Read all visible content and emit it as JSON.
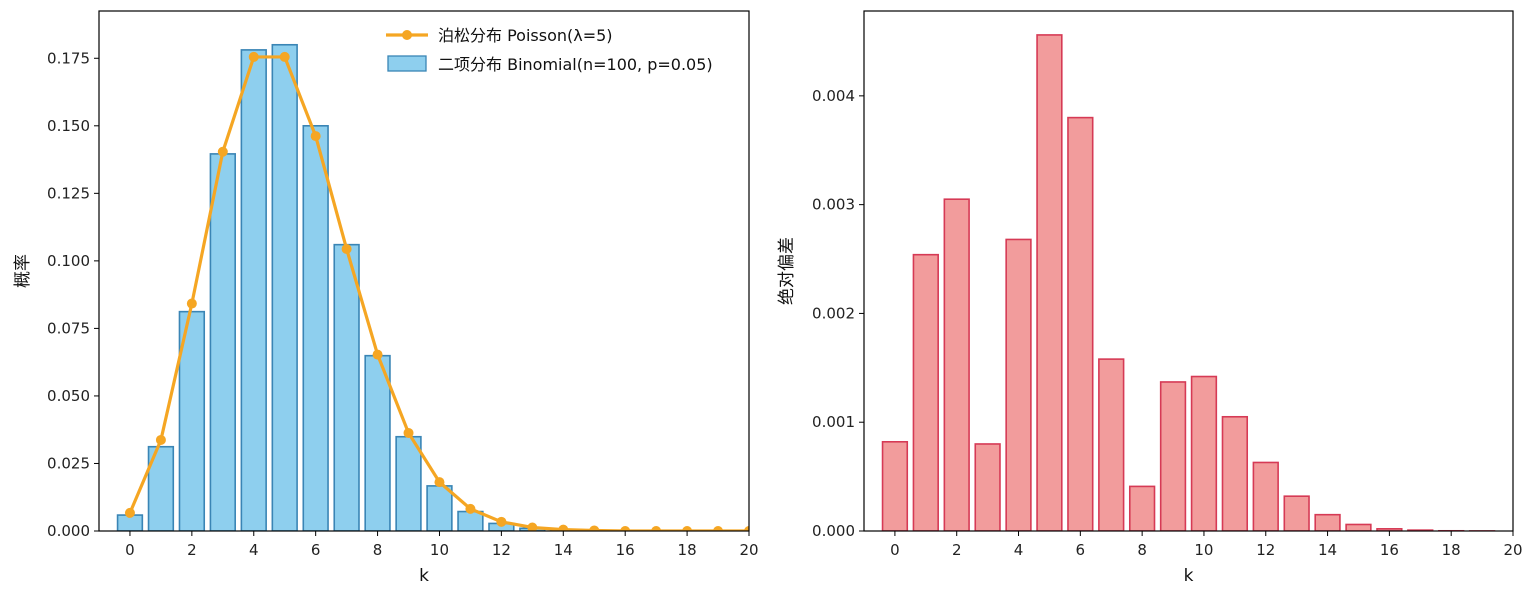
{
  "chart_data": [
    {
      "type": "bar+line",
      "title": "",
      "xlabel": "k",
      "ylabel": "概率",
      "xlim": [
        -1,
        20
      ],
      "ylim": [
        0,
        0.1925
      ],
      "xticks": [
        0,
        2,
        4,
        6,
        8,
        10,
        12,
        14,
        16,
        18,
        20
      ],
      "yticks": [
        0.0,
        0.025,
        0.05,
        0.075,
        0.1,
        0.125,
        0.15,
        0.175
      ],
      "ytick_labels": [
        "0.000",
        "0.025",
        "0.050",
        "0.075",
        "0.100",
        "0.125",
        "0.150",
        "0.175"
      ],
      "legend_position": "top-right",
      "series": [
        {
          "name": "泊松分布 Poisson(λ=5)",
          "kind": "line",
          "color": "#F5A623",
          "x": [
            0,
            1,
            2,
            3,
            4,
            5,
            6,
            7,
            8,
            9,
            10,
            11,
            12,
            13,
            14,
            15,
            16,
            17,
            18,
            19,
            20
          ],
          "values": [
            0.0067,
            0.0337,
            0.0842,
            0.1404,
            0.1755,
            0.1755,
            0.1462,
            0.1044,
            0.0653,
            0.0363,
            0.0181,
            0.0082,
            0.0034,
            0.0013,
            0.0005,
            0.0002,
            0.0,
            0.0,
            0.0,
            0.0,
            0.0
          ]
        },
        {
          "name": "二项分布 Binomial(n=100, p=0.05)",
          "kind": "bar",
          "color": "#8ECFEE",
          "edge_color": "#3A85B5",
          "x": [
            0,
            1,
            2,
            3,
            4,
            5,
            6,
            7,
            8,
            9,
            10,
            11,
            12,
            13,
            14,
            15,
            16,
            17,
            18,
            19
          ],
          "values": [
            0.0059,
            0.0312,
            0.0812,
            0.1396,
            0.1781,
            0.18,
            0.15,
            0.106,
            0.0649,
            0.0349,
            0.0167,
            0.0072,
            0.0028,
            0.001,
            0.0003,
            0.0001,
            0.0,
            0.0,
            0.0,
            0.0
          ]
        }
      ]
    },
    {
      "type": "bar",
      "title": "",
      "xlabel": "k",
      "ylabel": "绝对偏差",
      "xlim": [
        -1,
        20
      ],
      "ylim": [
        0,
        0.00478
      ],
      "xticks": [
        0,
        2,
        4,
        6,
        8,
        10,
        12,
        14,
        16,
        18,
        20
      ],
      "yticks": [
        0.0,
        0.001,
        0.002,
        0.003,
        0.004
      ],
      "ytick_labels": [
        "0.000",
        "0.001",
        "0.002",
        "0.003",
        "0.004"
      ],
      "color": "#F29C9C",
      "edge_color": "#D63A55",
      "categories": [
        0,
        1,
        2,
        3,
        4,
        5,
        6,
        7,
        8,
        9,
        10,
        11,
        12,
        13,
        14,
        15,
        16,
        17,
        18,
        19
      ],
      "values": [
        0.00082,
        0.00254,
        0.00305,
        0.0008,
        0.00268,
        0.00456,
        0.0038,
        0.00158,
        0.00041,
        0.00137,
        0.00142,
        0.00105,
        0.00063,
        0.00032,
        0.00015,
        6e-05,
        2e-05,
        8e-06,
        2e-06,
        5e-07
      ]
    }
  ]
}
